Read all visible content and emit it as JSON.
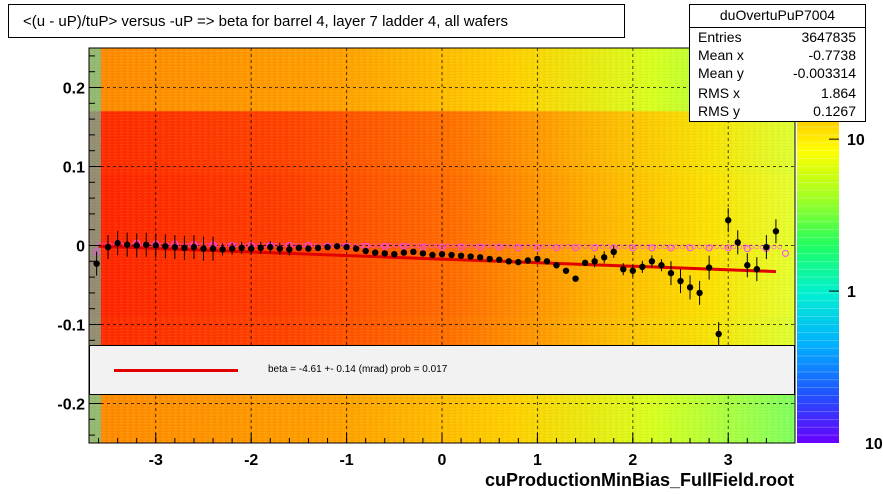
{
  "title": "<(u - uP)/tuP> versus  -uP => beta for barrel 4, layer 7 ladder 4, all wafers",
  "stats": {
    "name": "duOvertuPuP7004",
    "rows": [
      {
        "key": "Entries",
        "value": "3647835"
      },
      {
        "key": "Mean x",
        "value": "-0.7738"
      },
      {
        "key": "Mean y",
        "value": "-0.003314"
      },
      {
        "key": "RMS x",
        "value": "1.864"
      },
      {
        "key": "RMS y",
        "value": "0.1267"
      }
    ]
  },
  "legend": {
    "text": "beta =   -4.61 +-  0.14 (mrad) prob = 0.017",
    "line_color": "#e00000"
  },
  "footer": "cuProductionMinBias_FullField.root",
  "colors": {
    "fit_line": "#e00000",
    "profile_markers": "#000000",
    "reference_markers": "#ff44ff"
  },
  "chart_data": {
    "type": "heatmap",
    "xlim": [
      -3.7,
      3.7
    ],
    "ylim": [
      -0.25,
      0.25
    ],
    "x_ticks": [
      -3,
      -2,
      -1,
      0,
      1,
      2,
      3
    ],
    "x_tick_labels": [
      "-3",
      "-2",
      "-1",
      "0",
      "1",
      "2",
      "3"
    ],
    "y_ticks": [
      -0.2,
      -0.1,
      0,
      0.1,
      0.2
    ],
    "y_tick_labels": [
      "-0.2",
      "-0.1",
      "0",
      "0.1",
      "0.2"
    ],
    "z_scale": "log",
    "z_tick_labels": [
      "10",
      "1"
    ],
    "z_tick_values": [
      10,
      1
    ],
    "z_min_label": "10",
    "grid": true,
    "profile": [
      {
        "x": -3.62,
        "y": -0.023
      },
      {
        "x": -3.5,
        "y": -0.002
      },
      {
        "x": -3.4,
        "y": 0.003
      },
      {
        "x": -3.3,
        "y": 0.001
      },
      {
        "x": -3.2,
        "y": 0.0
      },
      {
        "x": -3.1,
        "y": 0.001
      },
      {
        "x": -3.0,
        "y": 0.0
      },
      {
        "x": -2.9,
        "y": -0.001
      },
      {
        "x": -2.8,
        "y": -0.002
      },
      {
        "x": -2.7,
        "y": -0.003
      },
      {
        "x": -2.6,
        "y": -0.002
      },
      {
        "x": -2.5,
        "y": -0.004
      },
      {
        "x": -2.4,
        "y": -0.004
      },
      {
        "x": -2.3,
        "y": -0.005
      },
      {
        "x": -2.2,
        "y": -0.004
      },
      {
        "x": -2.1,
        "y": -0.003
      },
      {
        "x": -2.0,
        "y": -0.004
      },
      {
        "x": -1.9,
        "y": -0.003
      },
      {
        "x": -1.8,
        "y": -0.002
      },
      {
        "x": -1.7,
        "y": -0.004
      },
      {
        "x": -1.6,
        "y": -0.005
      },
      {
        "x": -1.5,
        "y": -0.003
      },
      {
        "x": -1.4,
        "y": -0.004
      },
      {
        "x": -1.3,
        "y": -0.003
      },
      {
        "x": -1.2,
        "y": -0.002
      },
      {
        "x": -1.1,
        "y": -0.001
      },
      {
        "x": -1.0,
        "y": -0.002
      },
      {
        "x": -0.9,
        "y": -0.004
      },
      {
        "x": -0.8,
        "y": -0.007
      },
      {
        "x": -0.7,
        "y": -0.009
      },
      {
        "x": -0.6,
        "y": -0.01
      },
      {
        "x": -0.5,
        "y": -0.011
      },
      {
        "x": -0.4,
        "y": -0.009
      },
      {
        "x": -0.3,
        "y": -0.008
      },
      {
        "x": -0.2,
        "y": -0.01
      },
      {
        "x": -0.1,
        "y": -0.012
      },
      {
        "x": 0.0,
        "y": -0.011
      },
      {
        "x": 0.1,
        "y": -0.012
      },
      {
        "x": 0.2,
        "y": -0.013
      },
      {
        "x": 0.3,
        "y": -0.014
      },
      {
        "x": 0.4,
        "y": -0.015
      },
      {
        "x": 0.5,
        "y": -0.017
      },
      {
        "x": 0.6,
        "y": -0.018
      },
      {
        "x": 0.7,
        "y": -0.02
      },
      {
        "x": 0.8,
        "y": -0.021
      },
      {
        "x": 0.9,
        "y": -0.019
      },
      {
        "x": 1.0,
        "y": -0.017
      },
      {
        "x": 1.1,
        "y": -0.02
      },
      {
        "x": 1.2,
        "y": -0.025
      },
      {
        "x": 1.3,
        "y": -0.032
      },
      {
        "x": 1.4,
        "y": -0.042
      },
      {
        "x": 1.5,
        "y": -0.022
      },
      {
        "x": 1.6,
        "y": -0.02
      },
      {
        "x": 1.7,
        "y": -0.015
      },
      {
        "x": 1.8,
        "y": -0.008
      },
      {
        "x": 1.9,
        "y": -0.03
      },
      {
        "x": 2.0,
        "y": -0.032
      },
      {
        "x": 2.1,
        "y": -0.027
      },
      {
        "x": 2.2,
        "y": -0.02
      },
      {
        "x": 2.3,
        "y": -0.025
      },
      {
        "x": 2.4,
        "y": -0.035
      },
      {
        "x": 2.5,
        "y": -0.045
      },
      {
        "x": 2.6,
        "y": -0.053
      },
      {
        "x": 2.7,
        "y": -0.06
      },
      {
        "x": 2.8,
        "y": -0.028
      },
      {
        "x": 2.9,
        "y": -0.112
      },
      {
        "x": 3.0,
        "y": 0.032
      },
      {
        "x": 3.1,
        "y": 0.004
      },
      {
        "x": 3.2,
        "y": -0.025
      },
      {
        "x": 3.3,
        "y": -0.03
      },
      {
        "x": 3.4,
        "y": -0.002
      },
      {
        "x": 3.5,
        "y": 0.018
      }
    ],
    "reference": [
      {
        "x": -3.62,
        "y": -0.008
      },
      {
        "x": -3.4,
        "y": 0.003
      },
      {
        "x": -3.2,
        "y": 0.003
      },
      {
        "x": -3.0,
        "y": 0.002
      },
      {
        "x": -2.8,
        "y": 0.002
      },
      {
        "x": -2.6,
        "y": 0.001
      },
      {
        "x": -2.4,
        "y": 0.001
      },
      {
        "x": -2.2,
        "y": 0.0
      },
      {
        "x": -2.0,
        "y": 0.0
      },
      {
        "x": -1.8,
        "y": 0.0
      },
      {
        "x": -1.6,
        "y": 0.0
      },
      {
        "x": -1.4,
        "y": 0.0
      },
      {
        "x": -1.2,
        "y": -0.001
      },
      {
        "x": -1.0,
        "y": -0.001
      },
      {
        "x": -0.8,
        "y": -0.001
      },
      {
        "x": -0.6,
        "y": -0.001
      },
      {
        "x": -0.4,
        "y": -0.001
      },
      {
        "x": -0.2,
        "y": -0.002
      },
      {
        "x": 0.0,
        "y": -0.002
      },
      {
        "x": 0.2,
        "y": -0.002
      },
      {
        "x": 0.4,
        "y": -0.002
      },
      {
        "x": 0.6,
        "y": -0.002
      },
      {
        "x": 0.8,
        "y": -0.003
      },
      {
        "x": 1.0,
        "y": -0.003
      },
      {
        "x": 1.2,
        "y": -0.003
      },
      {
        "x": 1.4,
        "y": -0.003
      },
      {
        "x": 1.6,
        "y": -0.003
      },
      {
        "x": 1.8,
        "y": -0.003
      },
      {
        "x": 2.0,
        "y": -0.003
      },
      {
        "x": 2.2,
        "y": -0.003
      },
      {
        "x": 2.4,
        "y": -0.003
      },
      {
        "x": 2.6,
        "y": -0.003
      },
      {
        "x": 2.8,
        "y": -0.003
      },
      {
        "x": 3.0,
        "y": -0.003
      },
      {
        "x": 3.2,
        "y": -0.004
      },
      {
        "x": 3.4,
        "y": -0.004
      },
      {
        "x": 3.6,
        "y": -0.01
      }
    ],
    "fit_line": [
      {
        "x": -3.6,
        "y": -0.001
      },
      {
        "x": 3.5,
        "y": -0.033
      }
    ]
  }
}
